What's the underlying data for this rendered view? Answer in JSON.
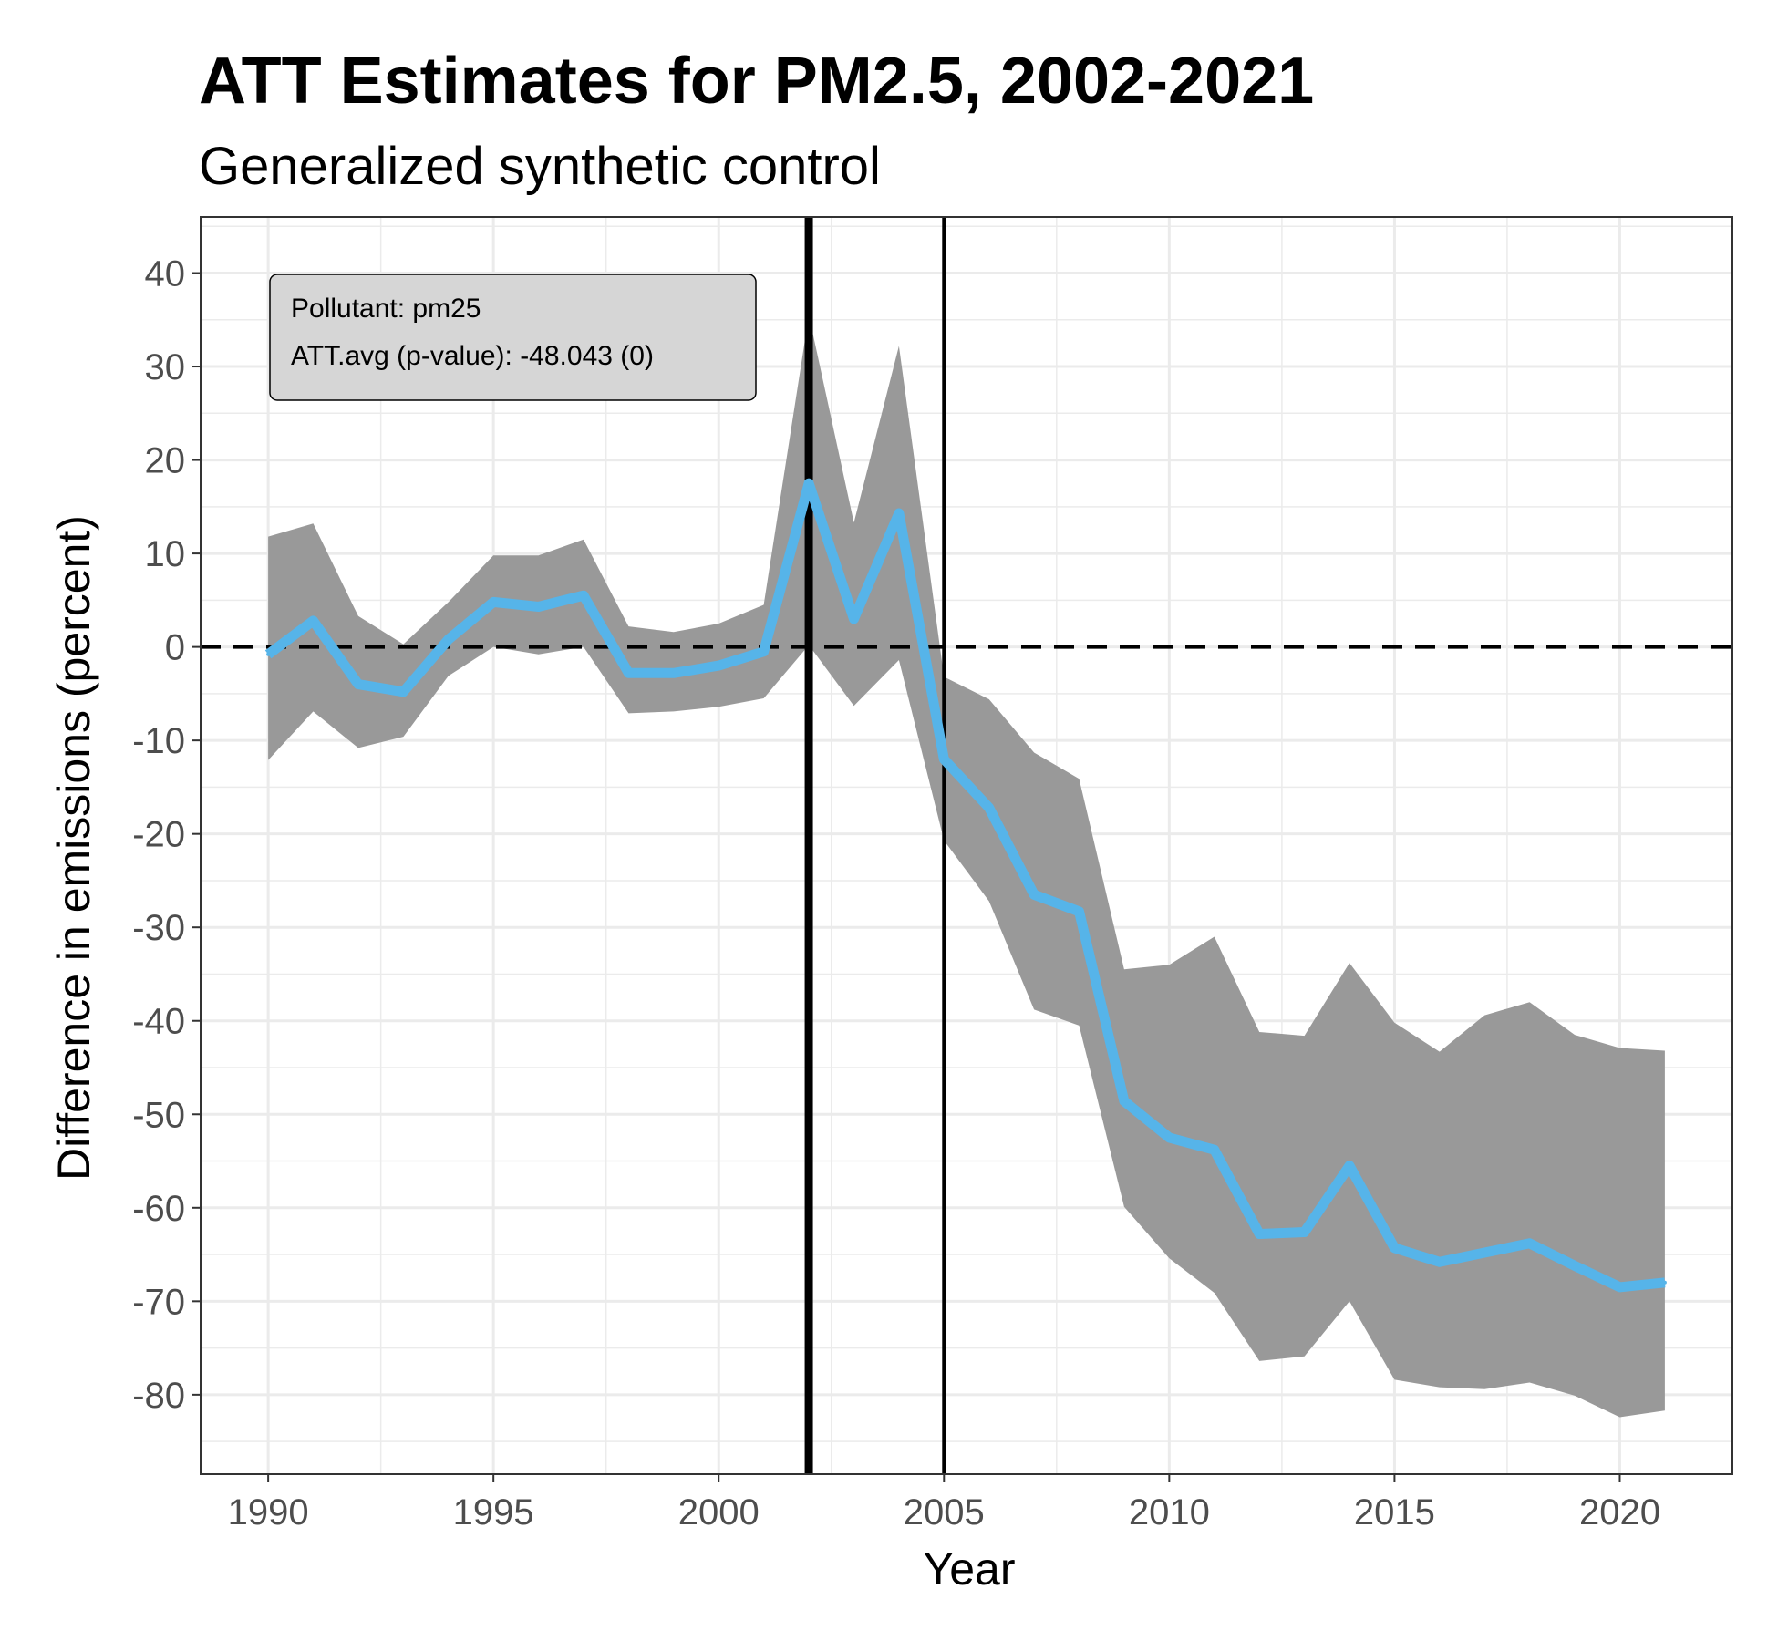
{
  "chart_data": {
    "type": "line",
    "title": "ATT Estimates for PM2.5, 2002-2021",
    "subtitle": "Generalized synthetic control",
    "xlabel": "Year",
    "ylabel": "Difference in emissions (percent)",
    "xlim": [
      1988.5,
      2022.5
    ],
    "ylim": [
      -88.5,
      46
    ],
    "xticks": [
      1990,
      1995,
      2000,
      2005,
      2010,
      2015,
      2020
    ],
    "xtick_labels": [
      "1990",
      "1995",
      "2000",
      "2005",
      "2010",
      "2015",
      "2020"
    ],
    "yticks": [
      40,
      30,
      20,
      10,
      0,
      -10,
      -20,
      -30,
      -40,
      -50,
      -60,
      -70,
      -80
    ],
    "ytick_labels": [
      "40",
      "30",
      "20",
      "10",
      "0",
      "-10",
      "-20",
      "-30",
      "-40",
      "-50",
      "-60",
      "-70",
      "-80"
    ],
    "grid": true,
    "x": [
      1990,
      1991,
      1992,
      1993,
      1994,
      1995,
      1996,
      1997,
      1998,
      1999,
      2000,
      2001,
      2002,
      2003,
      2004,
      2005,
      2006,
      2007,
      2008,
      2009,
      2010,
      2011,
      2012,
      2013,
      2014,
      2015,
      2016,
      2017,
      2018,
      2019,
      2020,
      2021
    ],
    "series": [
      {
        "values": [
          -0.8,
          2.8,
          -4.0,
          -4.8,
          0.8,
          4.8,
          4.3,
          5.5,
          -2.8,
          -2.8,
          -2.0,
          -0.5,
          17.5,
          3.0,
          14.3,
          -12.0,
          -17.2,
          -26.5,
          -28.3,
          -48.6,
          -52.5,
          -53.8,
          -62.8,
          -62.6,
          -55.5,
          -64.3,
          -65.8,
          -64.8,
          -63.8,
          -66.2,
          -68.5,
          -68.0
        ]
      }
    ],
    "band": {
      "upper": [
        11.8,
        13.2,
        3.3,
        0.3,
        4.8,
        9.8,
        9.8,
        11.5,
        2.2,
        1.6,
        2.5,
        4.5,
        35.5,
        13.3,
        32.2,
        -3.2,
        -5.6,
        -11.3,
        -14.1,
        -34.5,
        -34.0,
        -31.0,
        -41.2,
        -41.6,
        -33.8,
        -40.2,
        -43.3,
        -39.4,
        -38.0,
        -41.5,
        -42.9,
        -43.2
      ],
      "lower": [
        -12.1,
        -6.9,
        -10.8,
        -9.6,
        -3.1,
        0.0,
        -0.8,
        0.0,
        -7.1,
        -6.9,
        -6.4,
        -5.5,
        0.2,
        -6.3,
        -1.4,
        -20.7,
        -27.2,
        -38.8,
        -40.5,
        -59.9,
        -65.4,
        -69.1,
        -76.4,
        -75.9,
        -70.0,
        -78.4,
        -79.2,
        -79.4,
        -78.7,
        -80.1,
        -82.4,
        -81.7
      ]
    },
    "reference_lines": {
      "horizontal_dashed_y": 0,
      "vertical_thick_x": 2002,
      "vertical_thin_x": 2005
    },
    "colors": {
      "line": "#56B4E9",
      "band": "#999999",
      "reference": "#000000",
      "annotation_fill": "#d6d6d6",
      "grid": "#ebebeb"
    },
    "annotation": {
      "line1": "Pollutant: pm25",
      "line2": "ATT.avg (p-value): -48.043 (0)"
    }
  }
}
